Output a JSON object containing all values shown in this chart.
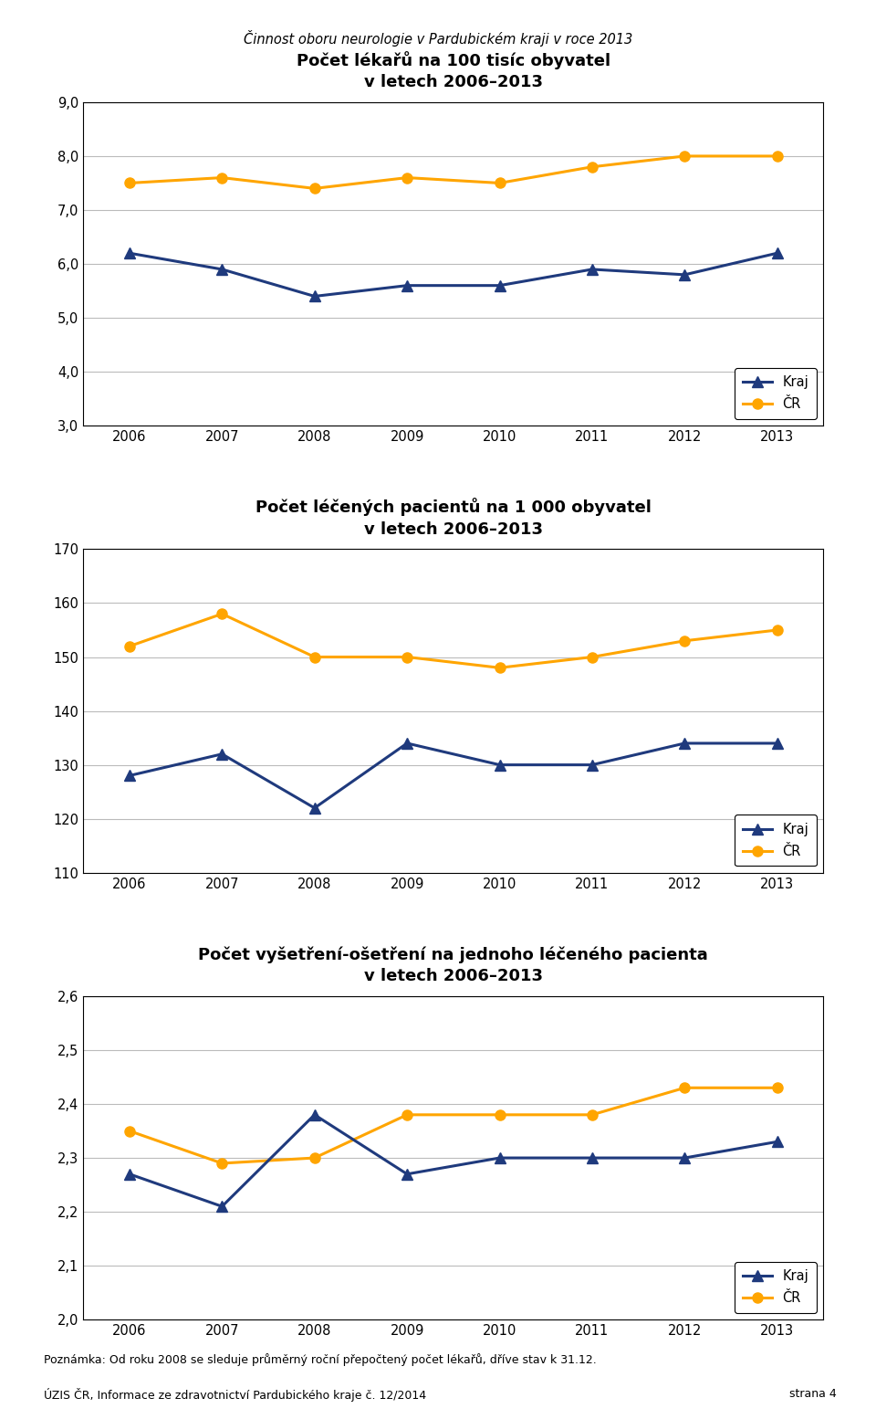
{
  "page_title": "Činnost oboru neurologie v Pardubickém kraji v roce 2013",
  "years": [
    2006,
    2007,
    2008,
    2009,
    2010,
    2011,
    2012,
    2013
  ],
  "chart1": {
    "title_line1": "Počet lékařů na 100 tisíc obyvatel",
    "title_line2": "v letech 2006–2013",
    "kraj": [
      6.2,
      5.9,
      5.4,
      5.6,
      5.6,
      5.9,
      5.8,
      6.2
    ],
    "cr": [
      7.5,
      7.6,
      7.4,
      7.6,
      7.5,
      7.8,
      8.0,
      8.0
    ],
    "ylim": [
      3.0,
      9.0
    ],
    "yticks": [
      3.0,
      4.0,
      5.0,
      6.0,
      7.0,
      8.0,
      9.0
    ],
    "ytick_labels": [
      "3,0",
      "4,0",
      "5,0",
      "6,0",
      "7,0",
      "8,0",
      "9,0"
    ]
  },
  "chart2": {
    "title_line1": "Počet léčených pacientů na 1 000 obyvatel",
    "title_line2": "v letech 2006–2013",
    "kraj": [
      128,
      132,
      122,
      134,
      130,
      130,
      134,
      134
    ],
    "cr": [
      152,
      158,
      150,
      150,
      148,
      150,
      153,
      155
    ],
    "ylim": [
      110,
      170
    ],
    "yticks": [
      110,
      120,
      130,
      140,
      150,
      160,
      170
    ],
    "ytick_labels": [
      "110",
      "120",
      "130",
      "140",
      "150",
      "160",
      "170"
    ]
  },
  "chart3": {
    "title_line1": "Počet vyšetření-ošetření na jednoho léčeného pacienta",
    "title_line2": "v letech 2006–2013",
    "kraj": [
      2.27,
      2.21,
      2.38,
      2.27,
      2.3,
      2.3,
      2.3,
      2.33
    ],
    "cr": [
      2.35,
      2.29,
      2.3,
      2.38,
      2.38,
      2.38,
      2.43,
      2.43
    ],
    "ylim": [
      2.0,
      2.6
    ],
    "yticks": [
      2.0,
      2.1,
      2.2,
      2.3,
      2.4,
      2.5,
      2.6
    ],
    "ytick_labels": [
      "2,0",
      "2,1",
      "2,2",
      "2,3",
      "2,4",
      "2,5",
      "2,6"
    ]
  },
  "kraj_color": "#1F3A7D",
  "cr_color": "#FFA500",
  "legend_kraj": "Kraj",
  "legend_cr": "ČR",
  "footer1": "Poznámka: Od roku 2008 se sleduje průměrný roční přepočtený počet lékařů, dříve stav k 31.12.",
  "footer2_left": "ÚZIS ČR, Informace ze zdravotnictví Pardubického kraje č. 12/2014",
  "footer2_right": "strana 4"
}
